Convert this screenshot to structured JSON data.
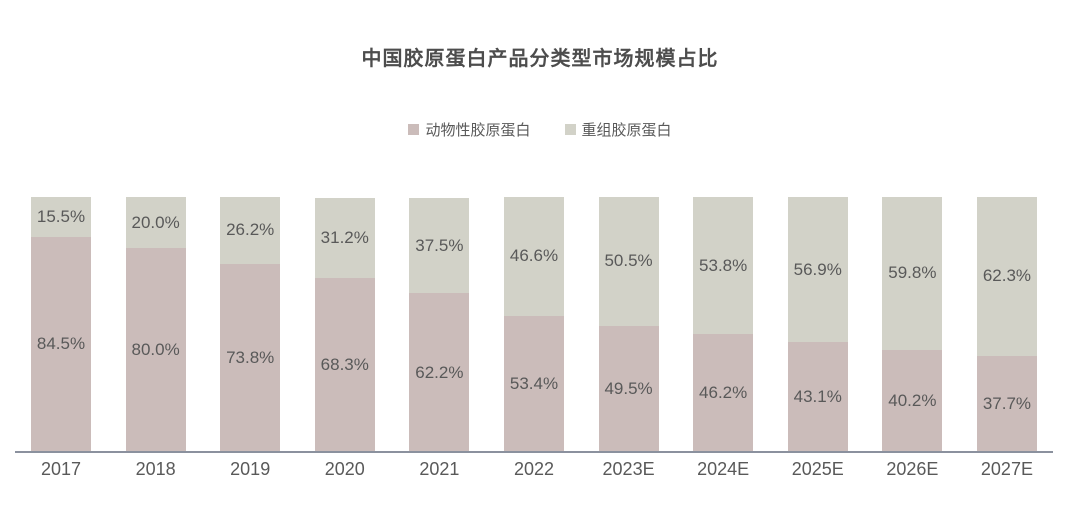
{
  "chart_data": {
    "type": "bar",
    "subtype": "stacked-100-percent",
    "title": "中国胶原蛋白产品分类型市场规模占比",
    "categories": [
      "2017",
      "2018",
      "2019",
      "2020",
      "2021",
      "2022",
      "2023E",
      "2024E",
      "2025E",
      "2026E",
      "2027E"
    ],
    "series": [
      {
        "name": "动物性胶原蛋白",
        "color": "#cbbcba",
        "stack_position": "bottom",
        "values": [
          84.5,
          80.0,
          73.8,
          68.3,
          62.2,
          53.4,
          49.5,
          46.2,
          43.1,
          40.2,
          37.7
        ],
        "labels": [
          "84.5%",
          "80.0%",
          "73.8%",
          "68.3%",
          "62.2%",
          "53.4%",
          "49.5%",
          "46.2%",
          "43.1%",
          "40.2%",
          "37.7%"
        ]
      },
      {
        "name": "重组胶原蛋白",
        "color": "#d2d2c8",
        "stack_position": "top",
        "values": [
          15.5,
          20.0,
          26.2,
          31.2,
          37.5,
          46.6,
          50.5,
          53.8,
          56.9,
          59.8,
          62.3
        ],
        "labels": [
          "15.5%",
          "20.0%",
          "26.2%",
          "31.2%",
          "37.5%",
          "46.6%",
          "50.5%",
          "53.8%",
          "56.9%",
          "59.8%",
          "62.3%"
        ]
      }
    ],
    "value_format": "percent",
    "ylim": [
      0,
      100
    ],
    "y_axis_visible": false,
    "grid": false,
    "legend_position": "top-center",
    "data_labels": "inside-center",
    "colors": {
      "title_text": "#4d4d4d",
      "label_text": "#595959",
      "axis_line": "#8b919e",
      "background": "#ffffff"
    }
  }
}
